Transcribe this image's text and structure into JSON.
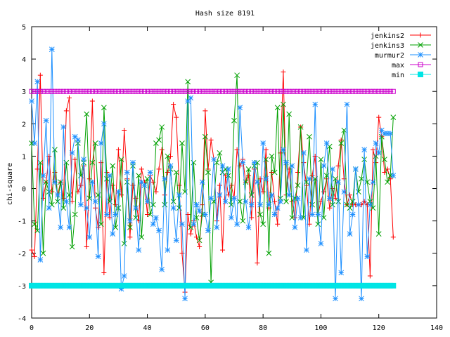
{
  "chart_data": {
    "type": "line",
    "title": "Hash size 8191",
    "xlabel": "",
    "ylabel": "chi-square",
    "xlim": [
      0,
      140
    ],
    "ylim": [
      -4,
      5
    ],
    "xticks": [
      "0",
      "20",
      "40",
      "60",
      "80",
      "100",
      "120",
      "140"
    ],
    "yticks": [
      "-4",
      "-3",
      "-2",
      "-1",
      "0",
      "1",
      "2",
      "3",
      "4",
      "5"
    ],
    "grid": false,
    "legend_position": "top-right",
    "series": [
      {
        "name": "jenkins2",
        "color": "#ff0000",
        "marker": "plus",
        "x": [
          0,
          1,
          2,
          3,
          4,
          5,
          6,
          7,
          8,
          9,
          10,
          11,
          12,
          13,
          14,
          15,
          16,
          17,
          18,
          19,
          20,
          21,
          22,
          23,
          24,
          25,
          26,
          27,
          28,
          29,
          30,
          31,
          32,
          33,
          34,
          35,
          36,
          37,
          38,
          39,
          40,
          41,
          42,
          43,
          44,
          45,
          46,
          47,
          48,
          49,
          50,
          51,
          52,
          53,
          54,
          55,
          56,
          57,
          58,
          59,
          60,
          61,
          62,
          63,
          64,
          65,
          66,
          67,
          68,
          69,
          70,
          71,
          72,
          73,
          74,
          75,
          76,
          77,
          78,
          79,
          80,
          81,
          82,
          83,
          84,
          85,
          86,
          87,
          88,
          89,
          90,
          91,
          92,
          93,
          94,
          95,
          96,
          97,
          98,
          99,
          100,
          101,
          102,
          103,
          104,
          105,
          106,
          107,
          108,
          109,
          110,
          111,
          112,
          113,
          114,
          115,
          116,
          117,
          118,
          119,
          120,
          121,
          122,
          123,
          124,
          125
        ],
        "y": [
          -1.9,
          -2.1,
          0.6,
          3.5,
          -0.3,
          0.2,
          1.0,
          -0.1,
          0.5,
          -0.2,
          0.2,
          -0.3,
          2.4,
          2.8,
          -0.4,
          0.9,
          -0.1,
          0.1,
          0.7,
          -1.8,
          0.3,
          2.7,
          -0.6,
          -1.2,
          0.8,
          -2.6,
          0.5,
          -0.9,
          0.1,
          -0.5,
          1.2,
          -0.2,
          1.8,
          0.3,
          -1.5,
          0.1,
          -0.3,
          -1.0,
          0.6,
          0.2,
          -0.8,
          0.4,
          0.2,
          -0.1,
          0.6,
          1.2,
          -0.2,
          0.5,
          1.0,
          2.6,
          2.2,
          0.1,
          -2.0,
          -3.2,
          -0.8,
          -1.4,
          -1.0,
          -1.5,
          -1.8,
          -0.5,
          2.4,
          0.6,
          1.5,
          0.9,
          -1.0,
          0.1,
          -1.9,
          0.4,
          -0.2,
          0.1,
          -0.3,
          1.2,
          0.7,
          0.9,
          0.2,
          0.4,
          -0.9,
          0.6,
          -2.3,
          0.3,
          -0.1,
          1.2,
          -0.6,
          0.5,
          -0.4,
          -1.1,
          1.1,
          3.6,
          -0.2,
          0.6,
          -0.4,
          -0.9,
          0.5,
          1.9,
          0.8,
          0.1,
          -1.1,
          0.4,
          1.0,
          -0.8,
          -0.4,
          -0.1,
          0.3,
          -0.6,
          0.0,
          -0.3,
          0.7,
          1.5,
          0.3,
          -0.5,
          -0.2,
          -0.5,
          -0.5,
          -0.5,
          -0.5,
          -0.4,
          -0.5,
          -2.7,
          1.2,
          0.8,
          2.2,
          1.6,
          0.5,
          0.6,
          0.3,
          -1.5
        ]
      },
      {
        "name": "jenkins3",
        "color": "#00a000",
        "marker": "x",
        "x": [
          0,
          1,
          2,
          3,
          4,
          5,
          6,
          7,
          8,
          9,
          10,
          11,
          12,
          13,
          14,
          15,
          16,
          17,
          18,
          19,
          20,
          21,
          22,
          23,
          24,
          25,
          26,
          27,
          28,
          29,
          30,
          31,
          32,
          33,
          34,
          35,
          36,
          37,
          38,
          39,
          40,
          41,
          42,
          43,
          44,
          45,
          46,
          47,
          48,
          49,
          50,
          51,
          52,
          53,
          54,
          55,
          56,
          57,
          58,
          59,
          60,
          61,
          62,
          63,
          64,
          65,
          66,
          67,
          68,
          69,
          70,
          71,
          72,
          73,
          74,
          75,
          76,
          77,
          78,
          79,
          80,
          81,
          82,
          83,
          84,
          85,
          86,
          87,
          88,
          89,
          90,
          91,
          92,
          93,
          94,
          95,
          96,
          97,
          98,
          99,
          100,
          101,
          102,
          103,
          104,
          105,
          106,
          107,
          108,
          109,
          110,
          111,
          112,
          113,
          114,
          115,
          116,
          117,
          118,
          119,
          120,
          121,
          122,
          123,
          124,
          125
        ],
        "y": [
          1.4,
          -1.1,
          -1.3,
          0.8,
          -2.0,
          0.2,
          -0.1,
          -0.5,
          1.2,
          -0.4,
          0.2,
          -0.6,
          0.8,
          -0.2,
          -1.8,
          -0.8,
          1.4,
          0.4,
          0.8,
          2.3,
          -0.3,
          0.8,
          1.4,
          -0.2,
          -1.1,
          2.5,
          0.3,
          -0.4,
          0.7,
          -1.2,
          -0.6,
          0.9,
          -1.7,
          0.2,
          -1.2,
          0.7,
          -0.9,
          0.4,
          -1.5,
          0.1,
          0.3,
          -0.8,
          -0.5,
          1.4,
          1.5,
          1.9,
          -0.5,
          1.0,
          0.6,
          -0.4,
          0.5,
          -0.6,
          1.4,
          -0.1,
          3.3,
          -1.2,
          0.8,
          -0.9,
          -1.6,
          -0.8,
          1.6,
          0.5,
          -2.9,
          -0.4,
          0.8,
          1.1,
          0.5,
          0.6,
          0.4,
          -0.5,
          2.1,
          3.5,
          -0.4,
          -1.0,
          0.2,
          0.6,
          -0.2,
          0.7,
          0.8,
          -0.8,
          -1.1,
          0.9,
          -2.0,
          1.0,
          0.5,
          2.5,
          -0.3,
          2.6,
          -0.4,
          2.3,
          -0.9,
          -0.3,
          0.1,
          1.9,
          -0.9,
          0.2,
          1.6,
          -0.5,
          0.3,
          -1.1,
          0.9,
          -0.9,
          0.4,
          1.3,
          -0.5,
          0.3,
          -0.4,
          1.4,
          1.8,
          -0.5,
          -0.6,
          -0.4,
          0.6,
          -0.1,
          0.3,
          0.9,
          0.2,
          -0.4,
          -0.6,
          1.0,
          -1.4,
          1.6,
          0.9,
          0.2,
          0.4,
          2.2
        ]
      },
      {
        "name": "murmur2",
        "color": "#1e90ff",
        "marker": "star",
        "x": [
          0,
          1,
          2,
          3,
          4,
          5,
          6,
          7,
          8,
          9,
          10,
          11,
          12,
          13,
          14,
          15,
          16,
          17,
          18,
          19,
          20,
          21,
          22,
          23,
          24,
          25,
          26,
          27,
          28,
          29,
          30,
          31,
          32,
          33,
          34,
          35,
          36,
          37,
          38,
          39,
          40,
          41,
          42,
          43,
          44,
          45,
          46,
          47,
          48,
          49,
          50,
          51,
          52,
          53,
          54,
          55,
          56,
          57,
          58,
          59,
          60,
          61,
          62,
          63,
          64,
          65,
          66,
          67,
          68,
          69,
          70,
          71,
          72,
          73,
          74,
          75,
          76,
          77,
          78,
          79,
          80,
          81,
          82,
          83,
          84,
          85,
          86,
          87,
          88,
          89,
          90,
          91,
          92,
          93,
          94,
          95,
          96,
          97,
          98,
          99,
          100,
          101,
          102,
          103,
          104,
          105,
          106,
          107,
          108,
          109,
          110,
          111,
          112,
          113,
          114,
          115,
          116,
          117,
          118,
          119,
          120,
          121,
          122,
          123,
          124,
          125
        ],
        "y": [
          2.7,
          1.4,
          3.3,
          -2.2,
          0.4,
          2.1,
          -0.6,
          4.3,
          0.2,
          -0.2,
          -1.2,
          1.9,
          -0.4,
          -1.2,
          1.1,
          1.6,
          1.5,
          -0.5,
          0.9,
          -0.6,
          -1.5,
          0.2,
          -0.4,
          -2.1,
          1.4,
          2.0,
          -0.8,
          0.4,
          -1.4,
          -0.8,
          -0.1,
          -3.1,
          -2.7,
          0.5,
          -1.0,
          0.8,
          -0.6,
          -1.9,
          0.2,
          0.1,
          -0.4,
          0.5,
          -1.1,
          -0.9,
          -1.3,
          -2.5,
          0.3,
          -1.9,
          0.7,
          -0.6,
          -1.6,
          -0.2,
          -1.1,
          -3.4,
          2.7,
          2.8,
          -1.1,
          -0.5,
          -0.7,
          0.2,
          -0.8,
          -1.3,
          -0.3,
          0.9,
          -1.2,
          -0.2,
          0.7,
          -0.4,
          0.6,
          -0.9,
          -0.3,
          -1.1,
          2.5,
          0.8,
          -0.4,
          -1.2,
          -0.5,
          0.8,
          0.2,
          -0.5,
          1.4,
          0.3,
          -0.5,
          -0.2,
          -0.8,
          -0.6,
          -0.4,
          1.2,
          0.8,
          -0.2,
          0.7,
          -1.2,
          -0.3,
          -0.9,
          1.1,
          -1.9,
          0.3,
          -0.8,
          2.6,
          -0.8,
          -1.7,
          0.7,
          1.4,
          -0.3,
          0.6,
          -3.4,
          0.2,
          -2.6,
          -0.1,
          2.6,
          -1.4,
          -0.8,
          0.6,
          -0.5,
          -3.4,
          1.2,
          -2.1,
          -0.5,
          0.2,
          1.4,
          1.1,
          1.8,
          1.7,
          1.7,
          1.7,
          0.4
        ]
      },
      {
        "name": "max",
        "color": "#cc00cc",
        "marker": "square-open",
        "x": [
          0,
          1,
          2,
          3,
          4,
          5,
          6,
          7,
          8,
          9,
          10,
          11,
          12,
          13,
          14,
          15,
          16,
          17,
          18,
          19,
          20,
          21,
          22,
          23,
          24,
          25,
          26,
          27,
          28,
          29,
          30,
          31,
          32,
          33,
          34,
          35,
          36,
          37,
          38,
          39,
          40,
          41,
          42,
          43,
          44,
          45,
          46,
          47,
          48,
          49,
          50,
          51,
          52,
          53,
          54,
          55,
          56,
          57,
          58,
          59,
          60,
          61,
          62,
          63,
          64,
          65,
          66,
          67,
          68,
          69,
          70,
          71,
          72,
          73,
          74,
          75,
          76,
          77,
          78,
          79,
          80,
          81,
          82,
          83,
          84,
          85,
          86,
          87,
          88,
          89,
          90,
          91,
          92,
          93,
          94,
          95,
          96,
          97,
          98,
          99,
          100,
          101,
          102,
          103,
          104,
          105,
          106,
          107,
          108,
          109,
          110,
          111,
          112,
          113,
          114,
          115,
          116,
          117,
          118,
          119,
          120,
          121,
          122,
          123,
          124,
          125
        ],
        "y": [
          3,
          3,
          3,
          3,
          3,
          3,
          3,
          3,
          3,
          3,
          3,
          3,
          3,
          3,
          3,
          3,
          3,
          3,
          3,
          3,
          3,
          3,
          3,
          3,
          3,
          3,
          3,
          3,
          3,
          3,
          3,
          3,
          3,
          3,
          3,
          3,
          3,
          3,
          3,
          3,
          3,
          3,
          3,
          3,
          3,
          3,
          3,
          3,
          3,
          3,
          3,
          3,
          3,
          3,
          3,
          3,
          3,
          3,
          3,
          3,
          3,
          3,
          3,
          3,
          3,
          3,
          3,
          3,
          3,
          3,
          3,
          3,
          3,
          3,
          3,
          3,
          3,
          3,
          3,
          3,
          3,
          3,
          3,
          3,
          3,
          3,
          3,
          3,
          3,
          3,
          3,
          3,
          3,
          3,
          3,
          3,
          3,
          3,
          3,
          3,
          3,
          3,
          3,
          3,
          3,
          3,
          3,
          3,
          3,
          3,
          3,
          3,
          3,
          3,
          3,
          3,
          3,
          3,
          3,
          3,
          3,
          3,
          3,
          3,
          3,
          3
        ]
      },
      {
        "name": "min",
        "color": "#00e5e5",
        "marker": "square-filled",
        "x": [
          0,
          1,
          2,
          3,
          4,
          5,
          6,
          7,
          8,
          9,
          10,
          11,
          12,
          13,
          14,
          15,
          16,
          17,
          18,
          19,
          20,
          21,
          22,
          23,
          24,
          25,
          26,
          27,
          28,
          29,
          30,
          31,
          32,
          33,
          34,
          35,
          36,
          37,
          38,
          39,
          40,
          41,
          42,
          43,
          44,
          45,
          46,
          47,
          48,
          49,
          50,
          51,
          52,
          53,
          54,
          55,
          56,
          57,
          58,
          59,
          60,
          61,
          62,
          63,
          64,
          65,
          66,
          67,
          68,
          69,
          70,
          71,
          72,
          73,
          74,
          75,
          76,
          77,
          78,
          79,
          80,
          81,
          82,
          83,
          84,
          85,
          86,
          87,
          88,
          89,
          90,
          91,
          92,
          93,
          94,
          95,
          96,
          97,
          98,
          99,
          100,
          101,
          102,
          103,
          104,
          105,
          106,
          107,
          108,
          109,
          110,
          111,
          112,
          113,
          114,
          115,
          116,
          117,
          118,
          119,
          120,
          121,
          122,
          123,
          124,
          125
        ],
        "y": [
          -3,
          -3,
          -3,
          -3,
          -3,
          -3,
          -3,
          -3,
          -3,
          -3,
          -3,
          -3,
          -3,
          -3,
          -3,
          -3,
          -3,
          -3,
          -3,
          -3,
          -3,
          -3,
          -3,
          -3,
          -3,
          -3,
          -3,
          -3,
          -3,
          -3,
          -3,
          -3,
          -3,
          -3,
          -3,
          -3,
          -3,
          -3,
          -3,
          -3,
          -3,
          -3,
          -3,
          -3,
          -3,
          -3,
          -3,
          -3,
          -3,
          -3,
          -3,
          -3,
          -3,
          -3,
          -3,
          -3,
          -3,
          -3,
          -3,
          -3,
          -3,
          -3,
          -3,
          -3,
          -3,
          -3,
          -3,
          -3,
          -3,
          -3,
          -3,
          -3,
          -3,
          -3,
          -3,
          -3,
          -3,
          -3,
          -3,
          -3,
          -3,
          -3,
          -3,
          -3,
          -3,
          -3,
          -3,
          -3,
          -3,
          -3,
          -3,
          -3,
          -3,
          -3,
          -3,
          -3,
          -3,
          -3,
          -3,
          -3,
          -3,
          -3,
          -3,
          -3,
          -3,
          -3,
          -3,
          -3,
          -3,
          -3,
          -3,
          -3,
          -3,
          -3,
          -3,
          -3,
          -3,
          -3,
          -3,
          -3,
          -3,
          -3,
          -3,
          -3,
          -3,
          -3
        ]
      }
    ]
  }
}
